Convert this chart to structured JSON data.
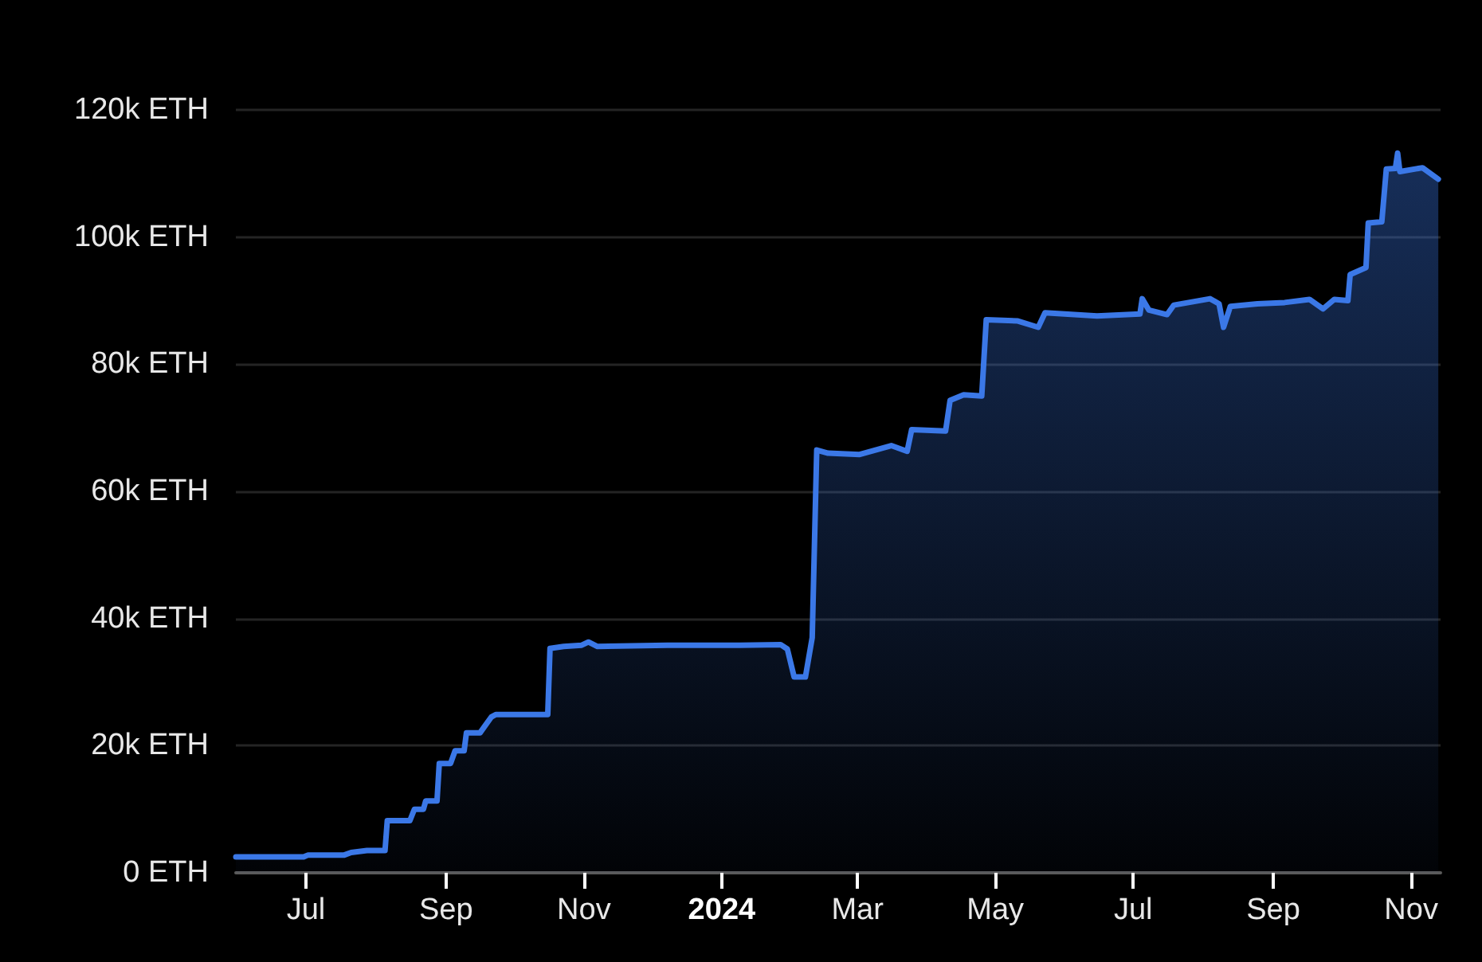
{
  "chart_data": {
    "type": "area",
    "color": "#3b78e7",
    "x": [
      "2023-05-31",
      "2023-06-30",
      "2023-07-02",
      "2023-07-18",
      "2023-07-21",
      "2023-07-28",
      "2023-08-05",
      "2023-08-06",
      "2023-08-16",
      "2023-08-18",
      "2023-08-22",
      "2023-08-23",
      "2023-08-28",
      "2023-08-29",
      "2023-09-03",
      "2023-09-05",
      "2023-09-09",
      "2023-09-10",
      "2023-09-16",
      "2023-09-18",
      "2023-09-21",
      "2023-09-23",
      "2023-10-16",
      "2023-10-17",
      "2023-10-23",
      "2023-10-31",
      "2023-11-03",
      "2023-11-07",
      "2023-12-08",
      "2024-01-09",
      "2024-01-27",
      "2024-01-30",
      "2024-02-02",
      "2024-02-07",
      "2024-02-10",
      "2024-02-12",
      "2024-02-17",
      "2024-03-02",
      "2024-03-16",
      "2024-03-23",
      "2024-03-25",
      "2024-04-09",
      "2024-04-11",
      "2024-04-17",
      "2024-04-25",
      "2024-04-27",
      "2024-05-11",
      "2024-05-20",
      "2024-05-23",
      "2024-06-15",
      "2024-07-04",
      "2024-07-05",
      "2024-07-08",
      "2024-07-16",
      "2024-07-19",
      "2024-08-04",
      "2024-08-08",
      "2024-08-10",
      "2024-08-13",
      "2024-08-25",
      "2024-09-06",
      "2024-09-17",
      "2024-09-23",
      "2024-09-28",
      "2024-10-04",
      "2024-10-05",
      "2024-10-12",
      "2024-10-13",
      "2024-10-19",
      "2024-10-21",
      "2024-10-25",
      "2024-10-26",
      "2024-10-27",
      "2024-11-06",
      "2024-11-13"
    ],
    "values": [
      2500,
      2500,
      2800,
      2800,
      3200,
      3500,
      3500,
      8200,
      8200,
      10000,
      10000,
      11300,
      11300,
      17200,
      17200,
      19200,
      19200,
      22000,
      22000,
      23000,
      24500,
      24900,
      24900,
      35300,
      35600,
      35800,
      36300,
      35600,
      35800,
      35800,
      35900,
      35200,
      30800,
      30800,
      37000,
      66500,
      66000,
      65800,
      67200,
      66300,
      69700,
      69500,
      74300,
      75200,
      75000,
      87000,
      86800,
      85800,
      88100,
      87600,
      87900,
      90300,
      88500,
      87800,
      89300,
      90300,
      89500,
      85800,
      89100,
      89500,
      89700,
      90200,
      88700,
      90200,
      90000,
      94100,
      95200,
      102200,
      102400,
      110700,
      110800,
      113200,
      110300,
      110900,
      109100
    ],
    "xlim": [
      "2023-05-31",
      "2024-11-14"
    ],
    "xticks": [
      {
        "value": "2023-07-01",
        "label": "Jul"
      },
      {
        "value": "2023-09-01",
        "label": "Sep"
      },
      {
        "value": "2023-11-01",
        "label": "Nov"
      },
      {
        "value": "2024-01-01",
        "label": "2024"
      },
      {
        "value": "2024-03-01",
        "label": "Mar"
      },
      {
        "value": "2024-05-01",
        "label": "May"
      },
      {
        "value": "2024-07-01",
        "label": "Jul"
      },
      {
        "value": "2024-09-01",
        "label": "Sep"
      },
      {
        "value": "2024-11-01",
        "label": "Nov"
      }
    ],
    "ylim": [
      0,
      120000
    ],
    "yticks": [
      {
        "value": 0,
        "label": "0 ETH"
      },
      {
        "value": 20000,
        "label": "20k ETH"
      },
      {
        "value": 40000,
        "label": "40k ETH"
      },
      {
        "value": 60000,
        "label": "60k ETH"
      },
      {
        "value": 80000,
        "label": "80k ETH"
      },
      {
        "value": 100000,
        "label": "100k ETH"
      },
      {
        "value": 120000,
        "label": "120k ETH"
      }
    ],
    "grid": "y"
  }
}
